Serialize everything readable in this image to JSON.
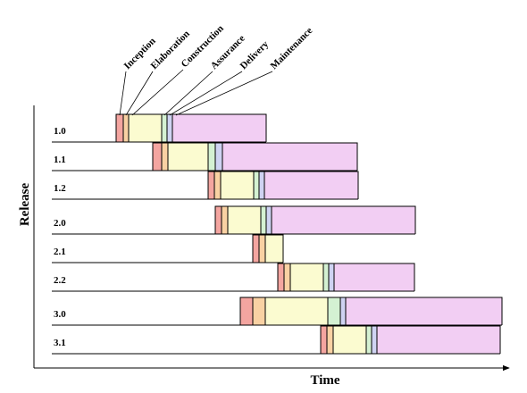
{
  "axis": {
    "y_title": "Release",
    "x_title": "Time"
  },
  "phases": [
    {
      "name": "Inception",
      "color": "#f4a5a0"
    },
    {
      "name": "Elaboration",
      "color": "#f9d1a3"
    },
    {
      "name": "Construction",
      "color": "#fbfbd0"
    },
    {
      "name": "Assurance",
      "color": "#d4f1d2"
    },
    {
      "name": "Delivery",
      "color": "#cfd3f2"
    },
    {
      "name": "Maintenance",
      "color": "#f2cef3"
    }
  ],
  "releases": [
    {
      "label": "1.0",
      "phase_widths": [
        8,
        6,
        37,
        6,
        6,
        105
      ]
    },
    {
      "label": "1.1",
      "phase_widths": [
        10,
        7,
        45,
        8,
        8,
        151
      ]
    },
    {
      "label": "1.2",
      "phase_widths": [
        7,
        7,
        37,
        6,
        6,
        105
      ]
    },
    {
      "label": "2.0",
      "phase_widths": [
        7,
        7,
        37,
        6,
        6,
        161
      ]
    },
    {
      "label": "2.1",
      "phase_widths": [
        7,
        7,
        20,
        0,
        0,
        0
      ]
    },
    {
      "label": "2.2",
      "phase_widths": [
        7,
        7,
        37,
        6,
        6,
        90
      ]
    },
    {
      "label": "3.0",
      "phase_widths": [
        14,
        14,
        70,
        14,
        6,
        175
      ]
    },
    {
      "label": "3.1",
      "phase_widths": [
        7,
        7,
        37,
        6,
        6,
        138
      ]
    }
  ]
}
